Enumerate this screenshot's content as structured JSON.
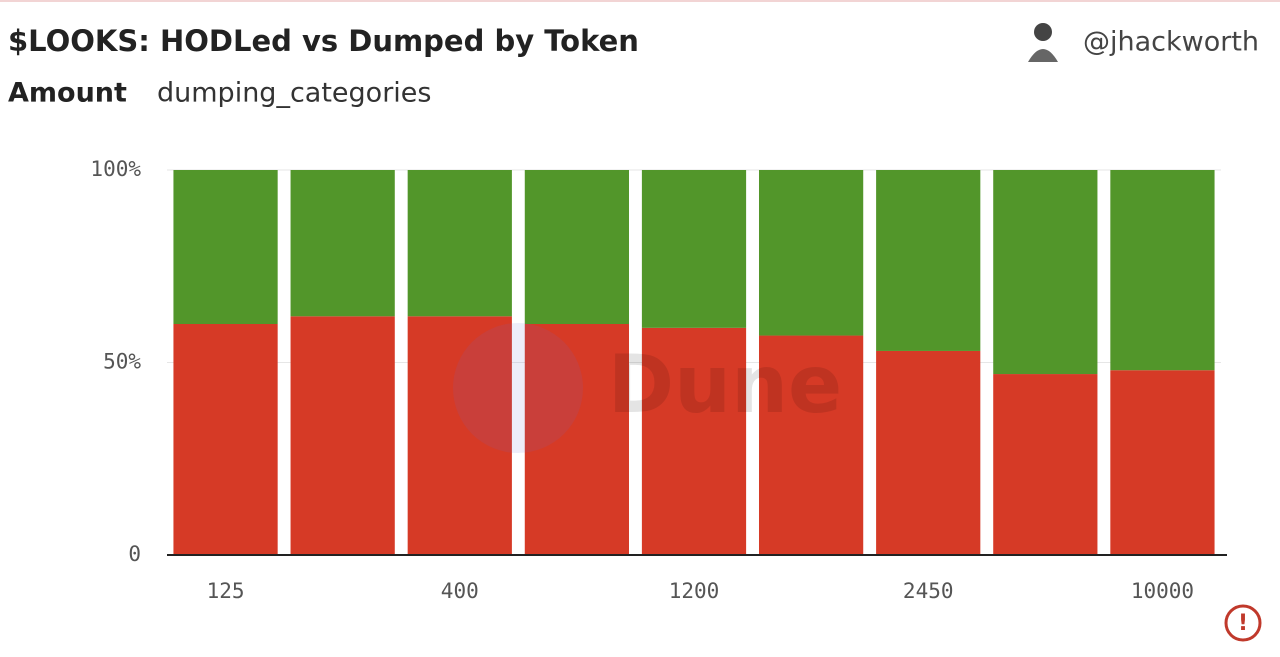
{
  "chart_data": {
    "type": "stacked_bar",
    "title": "$LOOKS: HODLed vs Dumped by Token",
    "subtitle": "Amount",
    "group_label": "dumping_categories",
    "author": "@jhackworth",
    "watermark": "Dune",
    "categories": [
      "125",
      null,
      "400",
      null,
      "1200",
      null,
      "2450",
      null,
      "10000"
    ],
    "series": [
      {
        "color": "#d63a26",
        "values": [
          60,
          62,
          62,
          60,
          59,
          57,
          53,
          47,
          48
        ]
      },
      {
        "color": "#52962a",
        "values": [
          40,
          38,
          38,
          40,
          41,
          43,
          47,
          53,
          52
        ]
      }
    ],
    "ylim": [
      0,
      100
    ],
    "yticks": [
      0,
      {
        "value": 50,
        "label": "50%"
      },
      {
        "value": 100,
        "label": "100%"
      }
    ],
    "grid": true
  }
}
